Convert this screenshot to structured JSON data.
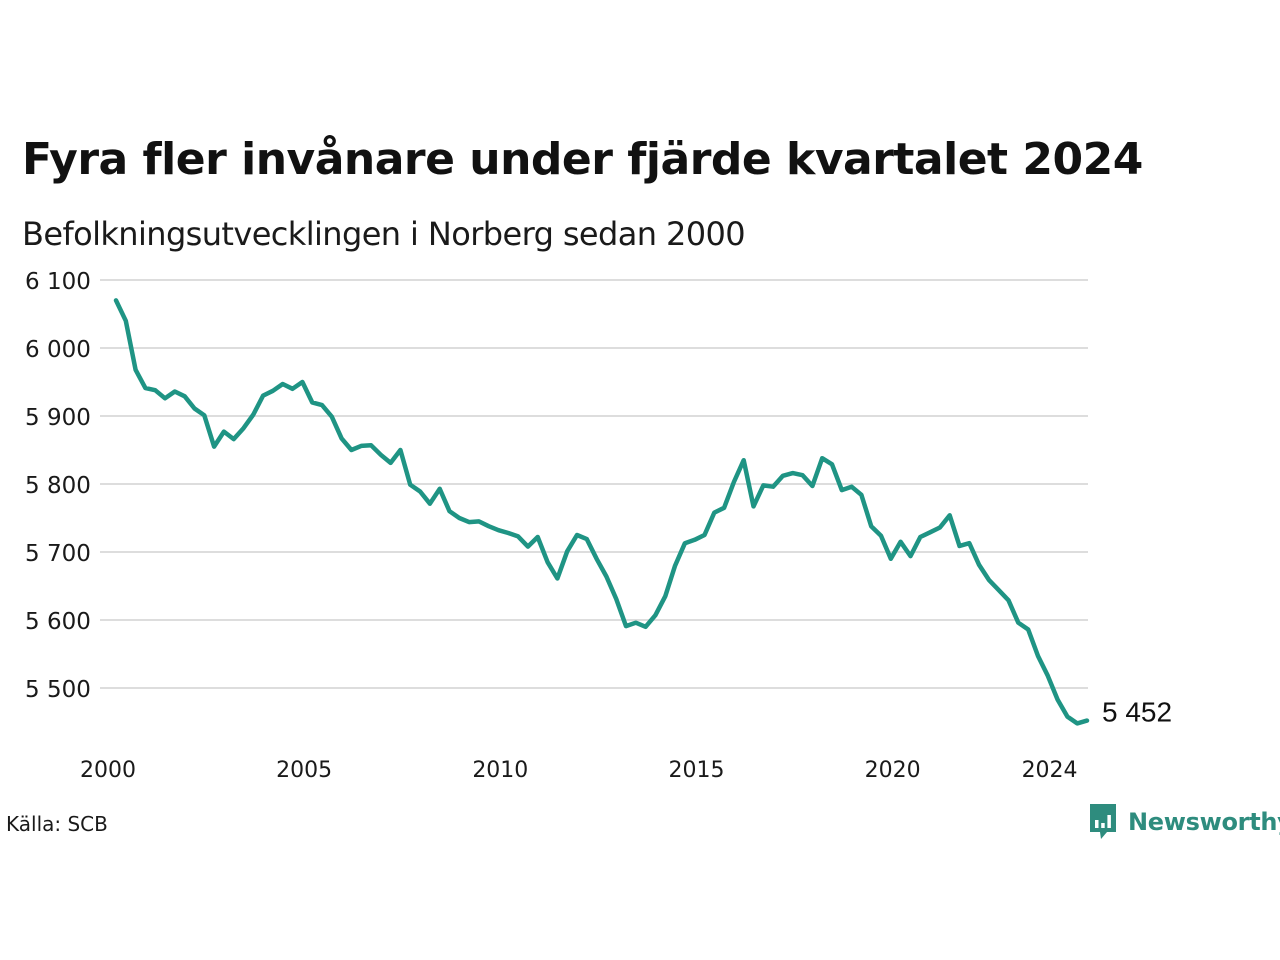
{
  "header": {
    "title": "Fyra fler invånare under fjärde kvartalet 2024",
    "subtitle": "Befolkningsutvecklingen i Norberg sedan 2000"
  },
  "footer": {
    "source": "Källa: SCB",
    "logo_text": "Newsworthy",
    "logo_icon": "bar-chart-speech-bubble-icon"
  },
  "colors": {
    "line": "#1f9484",
    "grid": "#dddddd",
    "brand": "#2e8c7e"
  },
  "chart_data": {
    "type": "line",
    "title": "Fyra fler invånare under fjärde kvartalet 2024",
    "subtitle": "Befolkningsutvecklingen i Norberg sedan 2000",
    "xlabel": "",
    "ylabel": "",
    "xlim": [
      2000,
      2024.75
    ],
    "ylim": [
      5430,
      6110
    ],
    "grid": true,
    "legend": "none",
    "x_ticks": [
      2000,
      2005,
      2010,
      2015,
      2020,
      2024
    ],
    "x_tick_labels": [
      "2000",
      "2005",
      "2010",
      "2015",
      "2020",
      "2024"
    ],
    "y_ticks": [
      5500,
      5600,
      5700,
      5800,
      5900,
      6000,
      6100
    ],
    "y_tick_labels": [
      "5 500",
      "5 600",
      "5 700",
      "5 800",
      "5 900",
      "6 000",
      "6 100"
    ],
    "end_label": "5 452",
    "x": [
      2000.0,
      2000.25,
      2000.5,
      2000.75,
      2001.0,
      2001.25,
      2001.5,
      2001.75,
      2002.0,
      2002.25,
      2002.5,
      2002.75,
      2003.0,
      2003.25,
      2003.5,
      2003.75,
      2004.0,
      2004.25,
      2004.5,
      2004.75,
      2005.0,
      2005.25,
      2005.5,
      2005.75,
      2006.0,
      2006.25,
      2006.5,
      2006.75,
      2007.0,
      2007.25,
      2007.5,
      2007.75,
      2008.0,
      2008.25,
      2008.5,
      2008.75,
      2009.0,
      2009.25,
      2009.5,
      2009.75,
      2010.0,
      2010.25,
      2010.5,
      2010.75,
      2011.0,
      2011.25,
      2011.5,
      2011.75,
      2012.0,
      2012.25,
      2012.5,
      2012.75,
      2013.0,
      2013.25,
      2013.5,
      2013.75,
      2014.0,
      2014.25,
      2014.5,
      2014.75,
      2015.0,
      2015.25,
      2015.5,
      2015.75,
      2016.0,
      2016.25,
      2016.5,
      2016.75,
      2017.0,
      2017.25,
      2017.5,
      2017.75,
      2018.0,
      2018.25,
      2018.5,
      2018.75,
      2019.0,
      2019.25,
      2019.5,
      2019.75,
      2020.0,
      2020.25,
      2020.5,
      2020.75,
      2021.0,
      2021.25,
      2021.5,
      2021.75,
      2022.0,
      2022.25,
      2022.5,
      2022.75,
      2023.0,
      2023.25,
      2023.5,
      2023.75,
      2024.0,
      2024.25,
      2024.5,
      2024.75
    ],
    "series": [
      {
        "values": [
          6070,
          6040,
          5968,
          5941,
          5938,
          5926,
          5936,
          5929,
          5911,
          5901,
          5855,
          5877,
          5866,
          5882,
          5902,
          5930,
          5937,
          5947,
          5940,
          5950,
          5920,
          5916,
          5899,
          5867,
          5850,
          5856,
          5857,
          5843,
          5831,
          5850,
          5799,
          5789,
          5771,
          5793,
          5760,
          5750,
          5744,
          5745,
          5738,
          5732,
          5728,
          5723,
          5708,
          5722,
          5685,
          5661,
          5701,
          5725,
          5719,
          5690,
          5664,
          5631,
          5591,
          5596,
          5590,
          5607,
          5635,
          5680,
          5713,
          5718,
          5725,
          5758,
          5765,
          5803,
          5835,
          5767,
          5798,
          5796,
          5812,
          5816,
          5813,
          5797,
          5838,
          5829,
          5791,
          5796,
          5784,
          5738,
          5724,
          5690,
          5715,
          5694,
          5722,
          5729,
          5736,
          5754,
          5709,
          5713,
          5681,
          5659,
          5644,
          5629,
          5596,
          5586,
          5547,
          5518,
          5483,
          5458,
          5448,
          5452
        ]
      }
    ]
  }
}
